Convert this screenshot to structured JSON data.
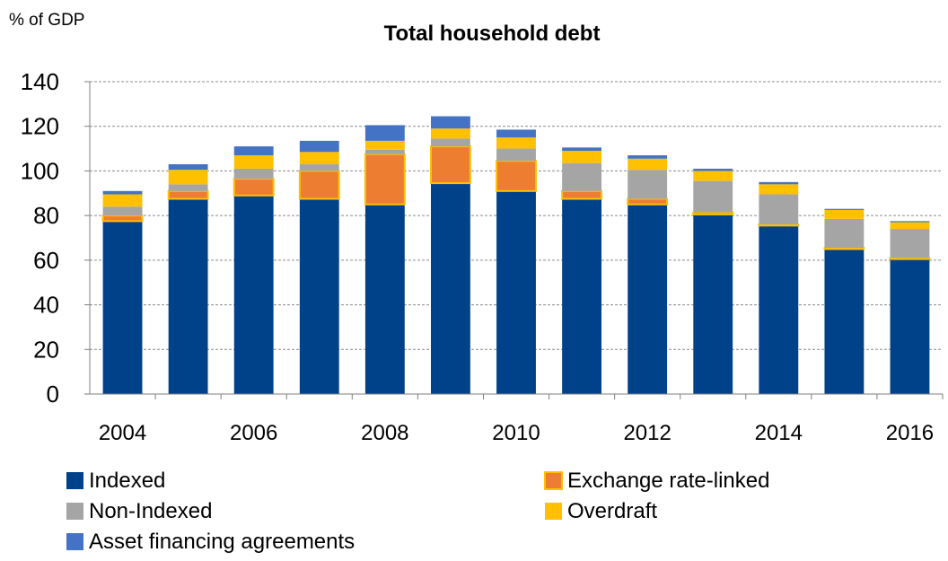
{
  "chart_data": {
    "type": "bar",
    "stacked": true,
    "title": "Total household debt",
    "unit_label": "% of GDP",
    "xlabel": "",
    "ylabel": "",
    "ylim": [
      0,
      140
    ],
    "yticks": [
      0,
      20,
      40,
      60,
      80,
      100,
      120,
      140
    ],
    "grid": true,
    "legend_position": "bottom",
    "categories": [
      "2004",
      "2005",
      "2006",
      "2007",
      "2008",
      "2009",
      "2010",
      "2011",
      "2012",
      "2013",
      "2014",
      "2015",
      "2016"
    ],
    "x_tick_labels": [
      "2004",
      "",
      "2006",
      "",
      "2008",
      "",
      "2010",
      "",
      "2012",
      "",
      "2014",
      "",
      "2016"
    ],
    "series": [
      {
        "name": "Indexed",
        "color": "#00428A",
        "values": [
          77.5,
          87.5,
          89,
          87.5,
          85,
          94.5,
          91,
          87.5,
          85,
          80.5,
          75.5,
          65,
          60.5
        ]
      },
      {
        "name": "Exchange rate-linked",
        "color": "#ED7D31",
        "values": [
          2.5,
          3.5,
          7.5,
          12.5,
          22.5,
          16.5,
          13.5,
          3.5,
          2.5,
          1,
          0.5,
          0.5,
          0.5
        ]
      },
      {
        "name": "Non-Indexed",
        "color": "#A5A5A5",
        "values": [
          4,
          3,
          4.5,
          3,
          2,
          3.5,
          5.5,
          12.5,
          13,
          14,
          13.5,
          13,
          13
        ]
      },
      {
        "name": "Overdraft",
        "color": "#FFC000",
        "values": [
          5.5,
          6.5,
          6,
          5.5,
          4,
          4.5,
          5,
          5.5,
          5,
          4.5,
          4.5,
          4,
          3
        ]
      },
      {
        "name": "Asset financing agreements",
        "color": "#4472C4",
        "values": [
          1.5,
          2.5,
          4,
          5,
          7,
          5.5,
          3.5,
          1.5,
          1.5,
          1,
          1,
          0.5,
          0.5
        ]
      }
    ]
  }
}
